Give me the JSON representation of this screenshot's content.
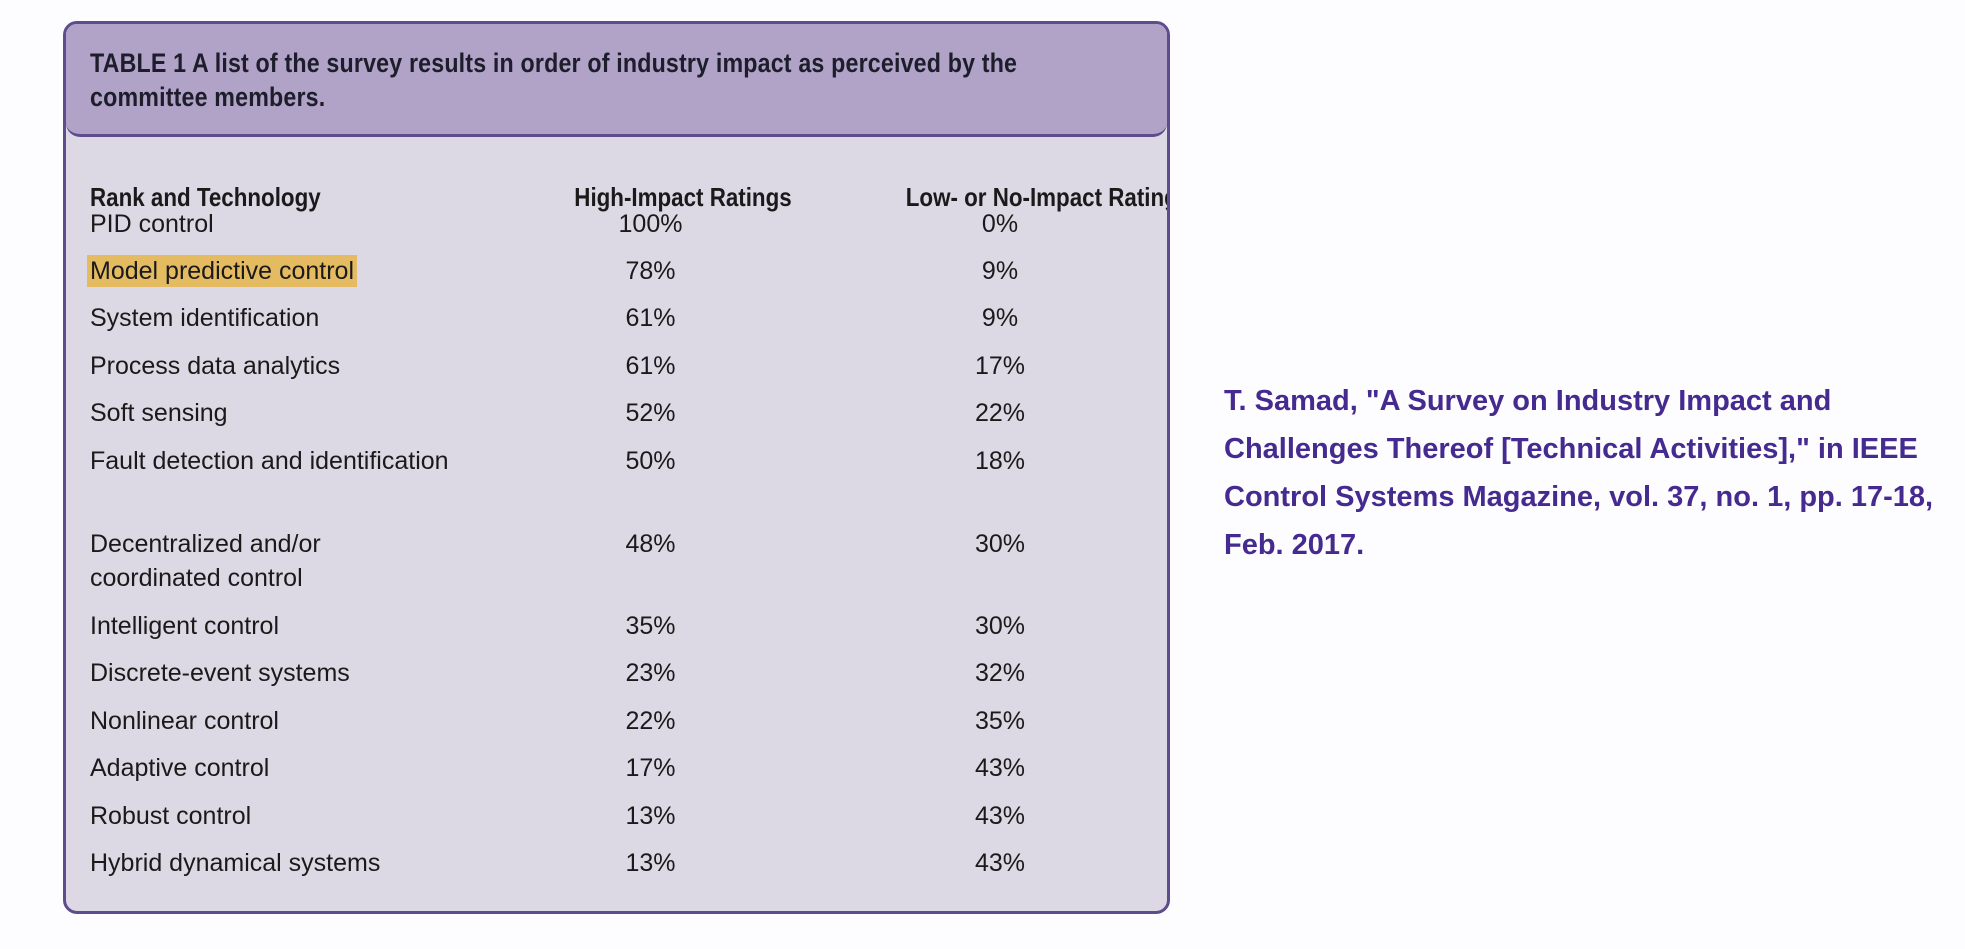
{
  "table": {
    "title": "TABLE 1 A list of the survey results in order of industry impact as perceived by the committee members.",
    "columns": [
      "Rank and Technology",
      "High-Impact Ratings",
      "Low- or No-Impact Ratings"
    ],
    "rows": [
      {
        "technology": "PID control",
        "high": "100%",
        "low": "0%",
        "highlighted": false
      },
      {
        "technology": "Model predictive control",
        "high": "78%",
        "low": "9%",
        "highlighted": true
      },
      {
        "technology": "System identification",
        "high": "61%",
        "low": "9%",
        "highlighted": false
      },
      {
        "technology": "Process data analytics",
        "high": "61%",
        "low": "17%",
        "highlighted": false
      },
      {
        "technology": "Soft sensing",
        "high": "52%",
        "low": "22%",
        "highlighted": false
      },
      {
        "technology": "Fault detection and identification",
        "high": "50%",
        "low": "18%",
        "highlighted": false
      },
      {
        "technology": "Decentralized and/or coordinated control",
        "high": "48%",
        "low": "30%",
        "highlighted": false
      },
      {
        "technology": "Intelligent control",
        "high": "35%",
        "low": "30%",
        "highlighted": false
      },
      {
        "technology": "Discrete-event systems",
        "high": "23%",
        "low": "32%",
        "highlighted": false
      },
      {
        "technology": "Nonlinear control",
        "high": "22%",
        "low": "35%",
        "highlighted": false
      },
      {
        "technology": "Adaptive control",
        "high": "17%",
        "low": "43%",
        "highlighted": false
      },
      {
        "technology": "Robust control",
        "high": "13%",
        "low": "43%",
        "highlighted": false
      },
      {
        "technology": "Hybrid dynamical systems",
        "high": "13%",
        "low": "43%",
        "highlighted": false
      }
    ]
  },
  "citation": {
    "text": "T. Samad, \"A Survey on Industry Impact and Challenges Thereof [Technical Activities],\" in IEEE Control Systems Magazine, vol. 37, no. 1, pp. 17-18, Feb. 2017."
  },
  "colors": {
    "header_bg": "#b0a3c7",
    "table_bg": "#dcd8e4",
    "border": "#5d4d8c",
    "highlight": "#e5bb62",
    "citation_text": "#452a8f"
  }
}
